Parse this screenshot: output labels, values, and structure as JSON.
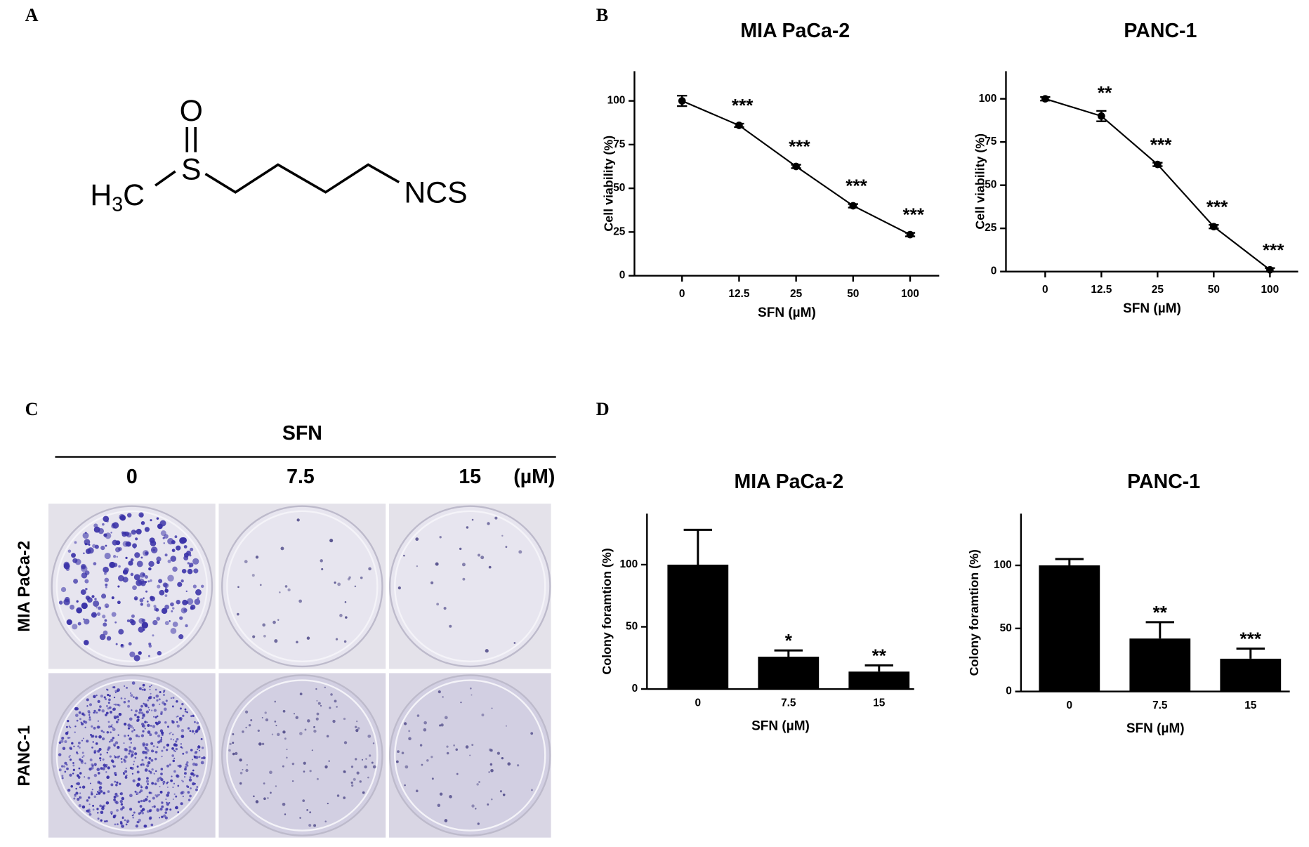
{
  "panel_labels": [
    "A",
    "B",
    "C",
    "D"
  ],
  "structure": {
    "oxygen": "O",
    "sulfur": "S",
    "methyl": [
      "H",
      "3",
      "C"
    ],
    "group": "NCS"
  },
  "photo_panel": {
    "treatment": "SFN",
    "doses": [
      "0",
      "7.5",
      "15"
    ],
    "unit": "(µM)",
    "rows": [
      "MIA PaCa-2",
      "PANC-1"
    ]
  },
  "chart_data": [
    {
      "type": "line",
      "title": "MIA PaCa-2",
      "x_label": "SFN  (µM)",
      "y_label": "Cell viability (%)",
      "categories": [
        "0",
        "12.5",
        "25",
        "50",
        "100"
      ],
      "values": [
        100,
        86,
        62.5,
        40,
        23.5
      ],
      "errors": [
        3,
        1,
        1,
        1,
        1
      ],
      "annotations": [
        null,
        "***",
        "***",
        "***",
        "***"
      ],
      "color": "#000000",
      "ylim": [
        0,
        117
      ],
      "yticks": [
        0,
        25,
        50,
        75,
        100
      ]
    },
    {
      "type": "line",
      "title": "PANC-1",
      "x_label": "SFN  (µM)",
      "y_label": "Cell viability (%)",
      "categories": [
        "0",
        "12.5",
        "25",
        "50",
        "100"
      ],
      "values": [
        100,
        90,
        62,
        26,
        1
      ],
      "errors": [
        1,
        3,
        1,
        1,
        1
      ],
      "annotations": [
        null,
        "**",
        "***",
        "***",
        "***"
      ],
      "color": "#000000",
      "ylim": [
        0,
        116
      ],
      "yticks": [
        0,
        25,
        50,
        75,
        100
      ]
    },
    {
      "type": "bar",
      "title": "MIA PaCa-2",
      "x_label": "SFN  (µM)",
      "y_label": "Colony foramtion (%)",
      "categories": [
        "0",
        "7.5",
        "15"
      ],
      "values": [
        100,
        26,
        14
      ],
      "errors": [
        28,
        5,
        5
      ],
      "annotations": [
        null,
        "*",
        "**"
      ],
      "color": "#000000",
      "ylim": [
        0,
        141
      ],
      "yticks": [
        0,
        50,
        100
      ]
    },
    {
      "type": "bar",
      "title": "PANC-1",
      "x_label": "SFN  (µM)",
      "y_label": "Colony foramtion (%)",
      "categories": [
        "0",
        "7.5",
        "15"
      ],
      "values": [
        100,
        42,
        26
      ],
      "errors": [
        5,
        13,
        8
      ],
      "annotations": [
        null,
        "**",
        "***"
      ],
      "color": "#000000",
      "ylim": [
        0,
        141
      ],
      "yticks": [
        0,
        50,
        100
      ]
    }
  ]
}
